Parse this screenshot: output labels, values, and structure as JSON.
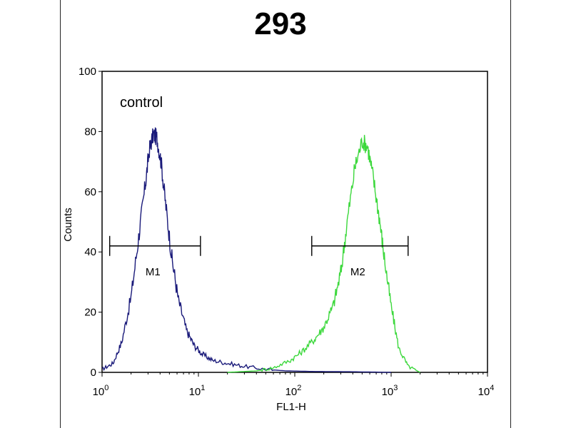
{
  "chart_data": {
    "type": "line",
    "title": "293",
    "xlabel": "FL1-H",
    "ylabel": "Counts",
    "x_scale": "log",
    "xlim": [
      1,
      10000
    ],
    "ylim": [
      0,
      100
    ],
    "x_ticks": [
      {
        "value": 1,
        "label": "10",
        "exp": "0"
      },
      {
        "value": 10,
        "label": "10",
        "exp": "1"
      },
      {
        "value": 100,
        "label": "10",
        "exp": "2"
      },
      {
        "value": 1000,
        "label": "10",
        "exp": "3"
      },
      {
        "value": 10000,
        "label": "10",
        "exp": "4"
      }
    ],
    "y_ticks": [
      0,
      20,
      40,
      60,
      80,
      100
    ],
    "grid": false,
    "annotation": "control",
    "series": [
      {
        "color": "#1a1a7a",
        "x": [
          1.0,
          1.3,
          1.6,
          2.0,
          2.4,
          2.8,
          3.1,
          3.4,
          3.7,
          4.1,
          4.6,
          5.3,
          6.2,
          7.5,
          9.0,
          11,
          14,
          20,
          30,
          50,
          80,
          150,
          400,
          1000
        ],
        "y": [
          1,
          3,
          10,
          25,
          45,
          62,
          74,
          79,
          78,
          70,
          55,
          38,
          24,
          14,
          9,
          6,
          4,
          3,
          2,
          1,
          0.5,
          0.3,
          0.2,
          0
        ]
      },
      {
        "color": "#3cd83c",
        "x": [
          20,
          40,
          60,
          90,
          120,
          160,
          200,
          250,
          300,
          350,
          420,
          500,
          570,
          650,
          750,
          850,
          1000,
          1200,
          1500,
          2000
        ],
        "y": [
          0,
          0.5,
          1.5,
          4,
          7,
          11,
          15,
          22,
          33,
          50,
          68,
          77,
          75,
          65,
          52,
          38,
          22,
          8,
          2,
          0
        ]
      }
    ],
    "gates": [
      {
        "label": "M1",
        "x_start": 1.2,
        "x_end": 10.5,
        "y": 42
      },
      {
        "label": "M2",
        "x_start": 150,
        "x_end": 1500,
        "y": 42
      }
    ]
  }
}
